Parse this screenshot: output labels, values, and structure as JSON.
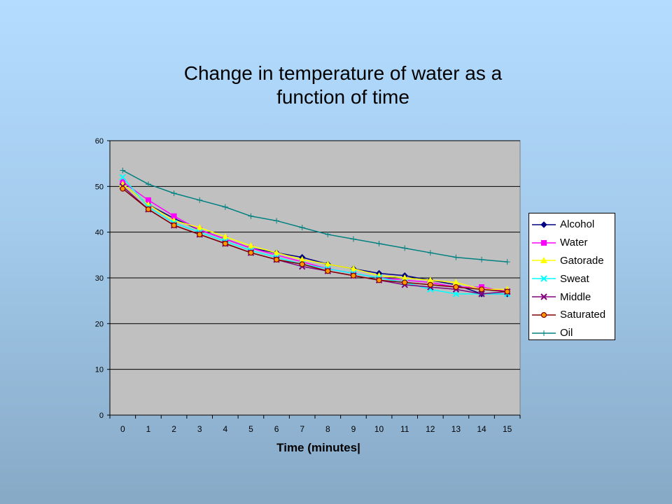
{
  "slide": {
    "title_line1": "Change in temperature of water as a",
    "title_line2": "function of time"
  },
  "chart_data": {
    "type": "line",
    "title": "Change in temperature of water as a function of time",
    "xlabel": "Time (minutes|",
    "ylabel": "",
    "x": [
      0,
      1,
      2,
      3,
      4,
      5,
      6,
      7,
      8,
      9,
      10,
      11,
      12,
      13,
      14,
      15
    ],
    "ylim": [
      0,
      60
    ],
    "yticks": [
      0,
      10,
      20,
      30,
      40,
      50,
      60
    ],
    "grid": true,
    "plot_background": "#c0c0c0",
    "legend_position": "right",
    "series": [
      {
        "name": "Alcohol",
        "color": "#000080",
        "marker": "diamond",
        "values": [
          50.5,
          46,
          43,
          40.5,
          38.5,
          36.5,
          35.5,
          34.5,
          33,
          32,
          31,
          30.5,
          29.5,
          28.5,
          26.5,
          26.5
        ]
      },
      {
        "name": "Water",
        "color": "#ff00ff",
        "marker": "square",
        "values": [
          51,
          47,
          43.5,
          40.5,
          38.5,
          36.5,
          35,
          33.5,
          32,
          31,
          30,
          29.5,
          29,
          28,
          28,
          27
        ]
      },
      {
        "name": "Gatorade",
        "color": "#ffff00",
        "marker": "triangle",
        "values": [
          50.5,
          46,
          42.5,
          41,
          39,
          37,
          35.5,
          34,
          33,
          32,
          30.5,
          30,
          29.5,
          29,
          27.5,
          27.5
        ]
      },
      {
        "name": "Sweat",
        "color": "#00ffff",
        "marker": "x",
        "values": [
          52,
          45.5,
          42,
          40,
          38,
          36,
          34.5,
          33,
          32,
          31,
          30,
          29,
          27.5,
          26.5,
          26.5,
          26.5
        ]
      },
      {
        "name": "Middle",
        "color": "#800080",
        "marker": "x",
        "values": [
          50,
          45,
          41.5,
          39.5,
          37.5,
          35.5,
          34,
          32.5,
          31.5,
          30.5,
          29.5,
          28.5,
          28,
          27.5,
          26.5,
          27
        ]
      },
      {
        "name": "Saturated",
        "color": "#800000",
        "marker": "circle",
        "values": [
          49.5,
          45,
          41.5,
          39.5,
          37.5,
          35.5,
          34,
          33,
          31.5,
          30.5,
          29.5,
          29,
          28.5,
          28,
          27.5,
          27
        ]
      },
      {
        "name": "Oil",
        "color": "#008080",
        "marker": "plus",
        "values": [
          53.5,
          50.5,
          48.5,
          47,
          45.5,
          43.5,
          42.5,
          41,
          39.5,
          38.5,
          37.5,
          36.5,
          35.5,
          34.5,
          34,
          33.5
        ]
      }
    ]
  }
}
